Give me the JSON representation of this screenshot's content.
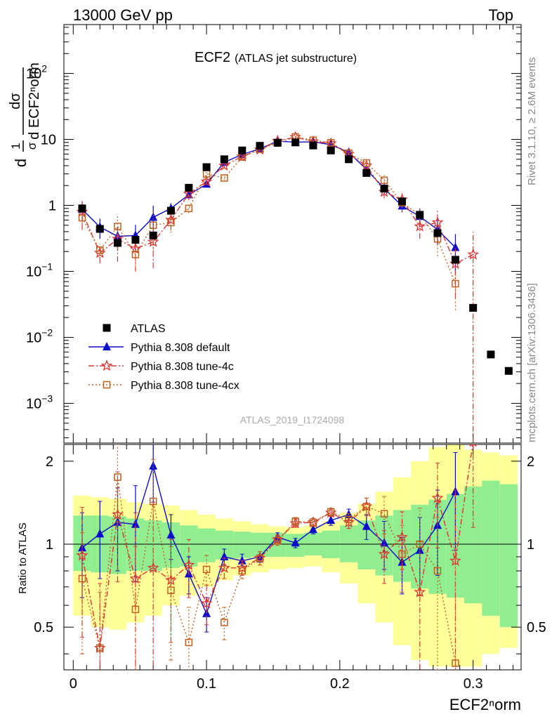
{
  "header": {
    "left": "13000 GeV pp",
    "right": "Top"
  },
  "side": {
    "rivet": "Rivet 3.1.10, ≥ 2.6M events",
    "mcplots": "mcplots.cern.ch [arXiv:1306.3436]"
  },
  "chart_data": {
    "type": "scatter",
    "title": "ECF2",
    "subtitle": "(ATLAS jet substructure)",
    "analysis_label": "ATLAS_2019_I1724098",
    "xlabel": "ECF2ⁿorm",
    "ylabel_parts": {
      "frac1_num": "1",
      "frac1_den": "σ",
      "frac2_num": "dσ",
      "frac2_den": "d ECF2ⁿorm",
      "prefix": "d"
    },
    "ratio_ylabel": "Ratio to ATLAS",
    "xlim": [
      -0.007,
      0.336
    ],
    "ylim_main": [
      0.00025,
      550
    ],
    "yscale_main": "log",
    "ylim_ratio": [
      0.35,
      2.3
    ],
    "yscale_ratio": "log",
    "x_ticks": [
      0,
      0.1,
      0.2,
      0.3
    ],
    "x_tick_labels": [
      "0",
      "0.1",
      "0.2",
      "0.3"
    ],
    "main_y_tick_labels": [
      {
        "value": 100,
        "base": "10",
        "exp": "2"
      },
      {
        "value": 10,
        "base": "10",
        "exp": ""
      },
      {
        "value": 1,
        "base": "1",
        "exp": ""
      },
      {
        "value": 0.1,
        "base": "10",
        "exp": "−1"
      },
      {
        "value": 0.01,
        "base": "10",
        "exp": "−2"
      },
      {
        "value": 0.001,
        "base": "10",
        "exp": "−3"
      }
    ],
    "ratio_y_ticks": [
      0.5,
      1,
      2
    ],
    "ratio_y_tick_labels": [
      "0.5",
      "1",
      "2"
    ],
    "legend_position": "lower-left",
    "x": [
      0.0067,
      0.02,
      0.0333,
      0.0467,
      0.06,
      0.0733,
      0.0867,
      0.1,
      0.1133,
      0.1267,
      0.14,
      0.1533,
      0.1667,
      0.18,
      0.1933,
      0.2067,
      0.22,
      0.2333,
      0.2467,
      0.26,
      0.2733,
      0.2867,
      0.3,
      0.3133,
      0.3267
    ],
    "series": [
      {
        "name": "ATLAS",
        "color": "#000000",
        "marker": "square",
        "y": [
          0.9,
          0.44,
          0.27,
          0.3,
          0.35,
          0.83,
          1.85,
          3.8,
          5.0,
          6.8,
          8.0,
          8.9,
          9.0,
          8.1,
          6.8,
          5.0,
          3.1,
          1.8,
          1.15,
          0.72,
          0.38,
          0.15,
          0.028,
          0.0055,
          0.0031
        ],
        "ratio_band_inner": [
          [
            0.8,
            1.27
          ],
          [
            0.79,
            1.27
          ],
          [
            0.78,
            1.26
          ],
          [
            0.8,
            1.24
          ],
          [
            0.8,
            1.22
          ],
          [
            0.82,
            1.2
          ],
          [
            0.83,
            1.17
          ],
          [
            0.86,
            1.14
          ],
          [
            0.88,
            1.12
          ],
          [
            0.89,
            1.11
          ],
          [
            0.9,
            1.1
          ],
          [
            0.9,
            1.1
          ],
          [
            0.9,
            1.09
          ],
          [
            0.91,
            1.1
          ],
          [
            0.89,
            1.12
          ],
          [
            0.86,
            1.17
          ],
          [
            0.81,
            1.22
          ],
          [
            0.77,
            1.27
          ],
          [
            0.73,
            1.33
          ],
          [
            0.69,
            1.39
          ],
          [
            0.66,
            1.45
          ],
          [
            0.64,
            1.52
          ],
          [
            0.61,
            1.62
          ],
          [
            0.55,
            1.7
          ],
          [
            0.5,
            1.65
          ]
        ],
        "ratio_band_outer": [
          [
            0.55,
            1.5
          ],
          [
            0.5,
            1.48
          ],
          [
            0.49,
            1.46
          ],
          [
            0.52,
            1.42
          ],
          [
            0.55,
            1.4
          ],
          [
            0.6,
            1.38
          ],
          [
            0.65,
            1.33
          ],
          [
            0.7,
            1.28
          ],
          [
            0.74,
            1.24
          ],
          [
            0.77,
            1.21
          ],
          [
            0.79,
            1.18
          ],
          [
            0.81,
            1.16
          ],
          [
            0.82,
            1.15
          ],
          [
            0.83,
            1.17
          ],
          [
            0.79,
            1.21
          ],
          [
            0.72,
            1.3
          ],
          [
            0.61,
            1.4
          ],
          [
            0.52,
            1.55
          ],
          [
            0.43,
            1.75
          ],
          [
            0.38,
            2.0
          ],
          [
            0.36,
            2.25
          ],
          [
            0.36,
            2.3
          ],
          [
            0.36,
            2.2
          ],
          [
            0.4,
            2.15
          ],
          [
            0.42,
            2.1
          ]
        ]
      },
      {
        "name": "Pythia 8.308 default",
        "color": "#0b0bcc",
        "marker": "triangle",
        "dash": "",
        "y": [
          0.87,
          0.47,
          0.34,
          0.35,
          0.66,
          0.9,
          1.45,
          2.1,
          4.5,
          5.9,
          7.2,
          9.4,
          9.1,
          9.2,
          8.3,
          6.4,
          3.5,
          1.8,
          0.98,
          0.68,
          0.43,
          0.23
        ],
        "ratio": [
          0.97,
          1.09,
          1.2,
          1.18,
          1.92,
          1.08,
          0.78,
          0.56,
          0.9,
          0.87,
          0.9,
          1.06,
          1.01,
          1.13,
          1.22,
          1.28,
          1.16,
          1.01,
          0.86,
          0.95,
          1.17,
          1.55
        ],
        "ratio_err": [
          0.33,
          0.34,
          0.4,
          0.45,
          0.5,
          0.2,
          0.12,
          0.08,
          0.06,
          0.05,
          0.04,
          0.04,
          0.04,
          0.04,
          0.05,
          0.06,
          0.12,
          0.2,
          0.2,
          0.3,
          0.4,
          0.6
        ]
      },
      {
        "name": "Pythia 8.308 tune-4c",
        "color": "#dd3333",
        "marker": "star",
        "dash": "8,3,2,3",
        "y": [
          0.8,
          0.19,
          0.31,
          0.22,
          0.28,
          0.6,
          1.5,
          2.3,
          4.0,
          5.5,
          7.0,
          9.5,
          10.8,
          9.3,
          8.7,
          6.0,
          4.0,
          1.6,
          1.22,
          0.48,
          0.55,
          0.13,
          0.18
        ],
        "ratio": [
          0.91,
          0.42,
          1.28,
          0.75,
          0.82,
          0.74,
          0.84,
          0.61,
          0.82,
          0.82,
          0.89,
          1.04,
          1.19,
          1.2,
          1.3,
          1.2,
          1.37,
          0.92,
          1.06,
          0.67,
          1.47,
          0.87,
          2.35
        ],
        "ratio_err": [
          0.45,
          0.3,
          0.55,
          0.55,
          0.6,
          0.3,
          0.2,
          0.1,
          0.07,
          0.05,
          0.05,
          0.04,
          0.04,
          0.04,
          0.04,
          0.06,
          0.1,
          0.2,
          0.25,
          0.35,
          0.5,
          0.7,
          1.2
        ]
      },
      {
        "name": "Pythia 8.308 tune-4cx",
        "color": "#c06020",
        "marker": "open-square",
        "dash": "2,3",
        "y": [
          0.65,
          0.21,
          0.48,
          0.18,
          0.5,
          0.55,
          0.9,
          3.0,
          2.6,
          5.4,
          7.1,
          8.8,
          10.9,
          9.7,
          8.9,
          6.2,
          4.4,
          2.4,
          1.1,
          0.72,
          0.31,
          0.065
        ],
        "ratio": [
          0.75,
          0.42,
          1.75,
          0.58,
          1.43,
          0.68,
          0.44,
          0.81,
          0.52,
          0.8,
          0.89,
          1.03,
          1.21,
          1.2,
          1.31,
          1.23,
          1.37,
          1.29,
          0.92,
          1.0,
          0.8,
          0.37
        ],
        "ratio_err": [
          0.35,
          0.25,
          0.55,
          0.4,
          0.6,
          0.3,
          0.15,
          0.1,
          0.07,
          0.05,
          0.05,
          0.04,
          0.04,
          0.04,
          0.04,
          0.06,
          0.1,
          0.2,
          0.25,
          0.35,
          0.45,
          0.6
        ]
      }
    ]
  }
}
